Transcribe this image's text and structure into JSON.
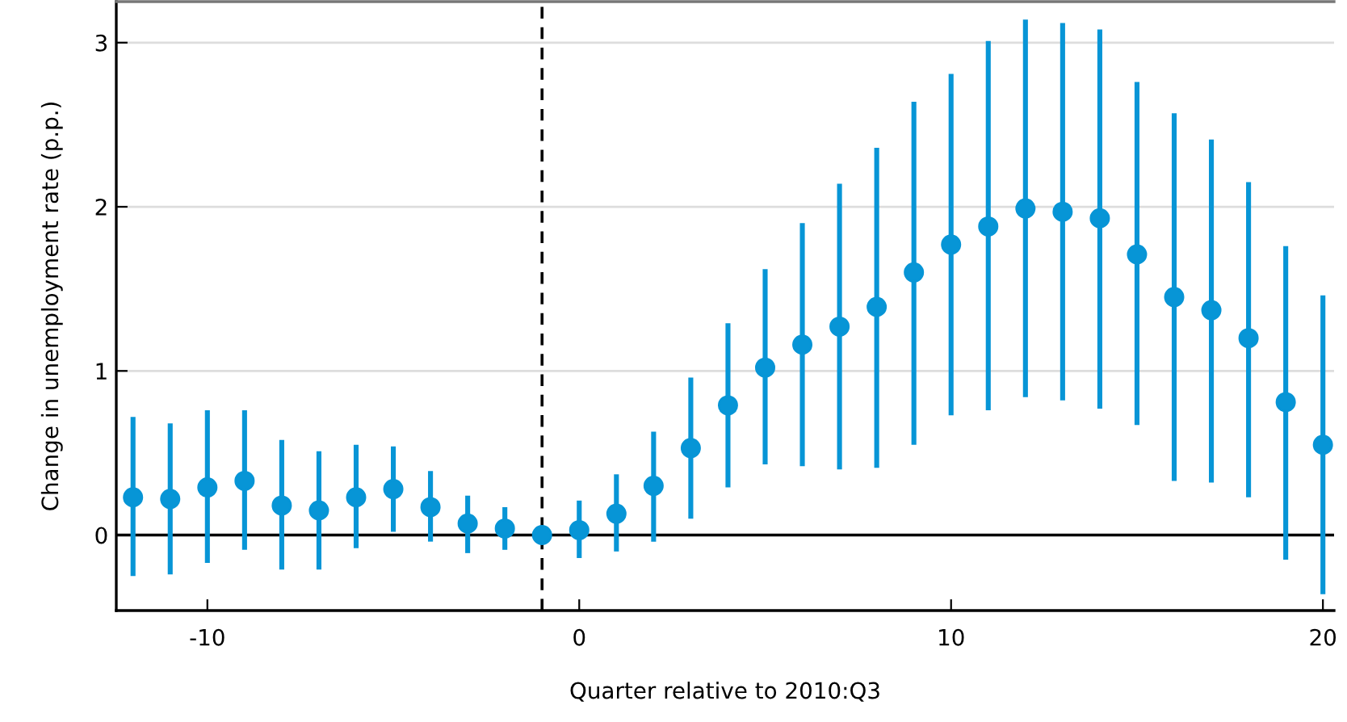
{
  "chart_data": {
    "type": "scatter",
    "xlabel": "Quarter relative to 2010:Q3",
    "ylabel": "Change in unemployment rate (p.p.)",
    "x": [
      -12,
      -11,
      -10,
      -9,
      -8,
      -7,
      -6,
      -5,
      -4,
      -3,
      -2,
      -1,
      0,
      1,
      2,
      3,
      4,
      5,
      6,
      7,
      8,
      9,
      10,
      11,
      12,
      13,
      14,
      15,
      16,
      17,
      18,
      19,
      20
    ],
    "series": [
      {
        "color": "#0795d6",
        "values": [
          0.23,
          0.22,
          0.29,
          0.33,
          0.18,
          0.15,
          0.23,
          0.28,
          0.17,
          0.07,
          0.04,
          0,
          0.03,
          0.13,
          0.3,
          0.53,
          0.79,
          1.02,
          1.16,
          1.27,
          1.39,
          1.6,
          1.77,
          1.88,
          1.99,
          1.97,
          1.93,
          1.71,
          1.45,
          1.37,
          1.2,
          0.81,
          0.55
        ],
        "errors": [
          [
            -0.25,
            0.72
          ],
          [
            -0.24,
            0.68
          ],
          [
            -0.17,
            0.76
          ],
          [
            -0.09,
            0.76
          ],
          [
            -0.21,
            0.58
          ],
          [
            -0.21,
            0.51
          ],
          [
            -0.08,
            0.55
          ],
          [
            0.02,
            0.54
          ],
          [
            -0.04,
            0.39
          ],
          [
            -0.11,
            0.24
          ],
          [
            -0.09,
            0.17
          ],
          null,
          [
            -0.14,
            0.21
          ],
          [
            -0.1,
            0.37
          ],
          [
            -0.04,
            0.63
          ],
          [
            0.1,
            0.96
          ],
          [
            0.29,
            1.29
          ],
          [
            0.43,
            1.62
          ],
          [
            0.42,
            1.9
          ],
          [
            0.4,
            2.14
          ],
          [
            0.41,
            2.36
          ],
          [
            0.55,
            2.64
          ],
          [
            0.73,
            2.81
          ],
          [
            0.76,
            3.01
          ],
          [
            0.84,
            3.14
          ],
          [
            0.82,
            3.12
          ],
          [
            0.77,
            3.08
          ],
          [
            0.67,
            2.76
          ],
          [
            0.33,
            2.57
          ],
          [
            0.32,
            2.41
          ],
          [
            0.23,
            2.15
          ],
          [
            -0.15,
            1.76
          ],
          [
            -0.36,
            1.46
          ]
        ]
      }
    ],
    "marker": "circle",
    "xlim": [
      -12.45,
      20.3
    ],
    "xticks": [
      {
        "value": -10,
        "label": "-10"
      },
      0,
      10,
      20
    ],
    "ylim": [
      -0.46,
      3.25
    ],
    "yticks": [
      0,
      1,
      2,
      3
    ],
    "grid": "y",
    "ref_lines": [
      {
        "axis": "y",
        "value": 0,
        "color": "#000000",
        "line_style": "solid"
      },
      {
        "axis": "x",
        "value": -1,
        "color": "#000000",
        "line_style": "dashed"
      }
    ]
  }
}
